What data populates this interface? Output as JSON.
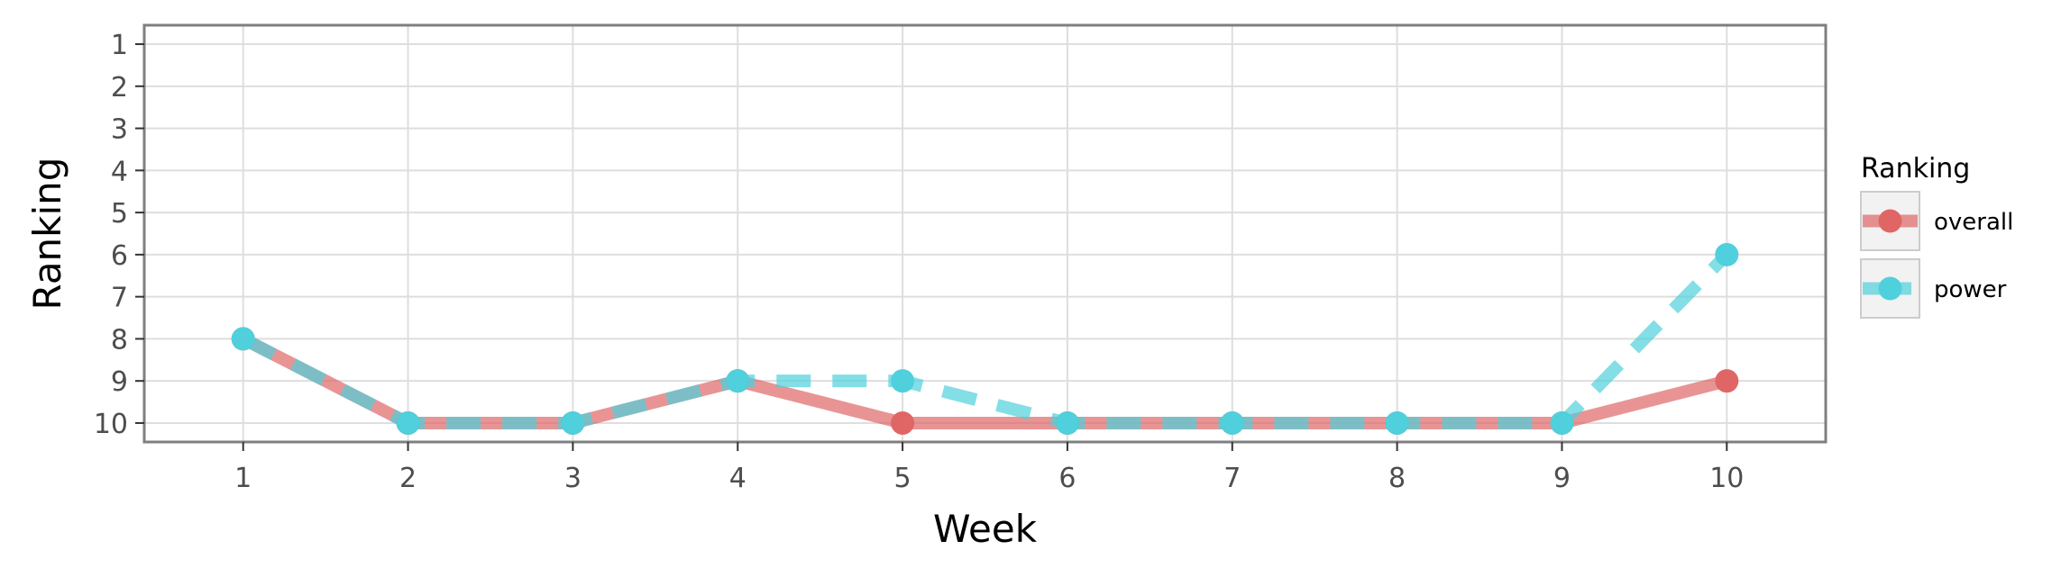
{
  "chart_data": {
    "type": "line",
    "title": "",
    "xlabel": "Week",
    "ylabel": "Ranking",
    "x": [
      1,
      2,
      3,
      4,
      5,
      6,
      7,
      8,
      9,
      10
    ],
    "xlim": [
      0.4,
      10.6
    ],
    "ylim": [
      10.45,
      0.55
    ],
    "y_reversed": true,
    "x_ticks": [
      1,
      2,
      3,
      4,
      5,
      6,
      7,
      8,
      9,
      10
    ],
    "y_ticks": [
      1,
      2,
      3,
      4,
      5,
      6,
      7,
      8,
      9,
      10
    ],
    "grid": true,
    "legend": {
      "title": "Ranking",
      "position": "right"
    },
    "series": [
      {
        "name": "overall",
        "color": "#e06666",
        "line_style": "solid",
        "values": [
          8,
          10,
          10,
          9,
          10,
          10,
          10,
          10,
          10,
          9
        ]
      },
      {
        "name": "power",
        "color": "#4fd0dc",
        "line_style": "dashed",
        "values": [
          8,
          10,
          10,
          9,
          9,
          10,
          10,
          10,
          10,
          6
        ]
      }
    ]
  }
}
